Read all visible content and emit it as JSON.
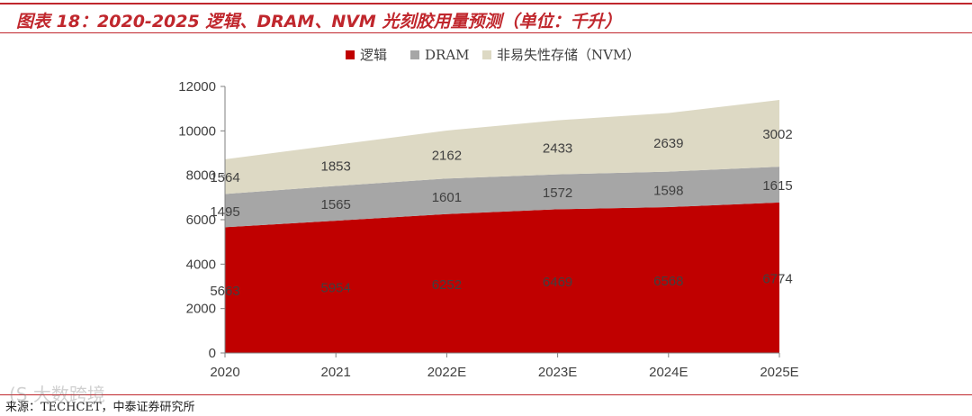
{
  "header": {
    "title": "图表 18：2020-2025 逻辑、DRAM、NVM 光刻胶用量预测（单位：千升）"
  },
  "footer": {
    "source": "来源：TECHCET，中泰证券研究所",
    "watermark": "(S 大数跨境"
  },
  "colors": {
    "accent": "#c0272d",
    "logic": "#c00000",
    "dram": "#a6a6a6",
    "nvm": "#ddd9c4"
  },
  "chart_data": {
    "type": "area",
    "stacked": true,
    "categories": [
      "2020",
      "2021",
      "2022E",
      "2023E",
      "2024E",
      "2025E"
    ],
    "series": [
      {
        "name": "逻辑",
        "values": [
          5663,
          5954,
          6252,
          6469,
          6568,
          6774
        ]
      },
      {
        "name": "DRAM",
        "values": [
          1495,
          1565,
          1601,
          1572,
          1598,
          1615
        ]
      },
      {
        "name": "非易失性存储（NVM）",
        "values": [
          1564,
          1853,
          2162,
          2433,
          2639,
          3002
        ]
      }
    ],
    "ylim": [
      0,
      12000
    ],
    "yticks": [
      "0",
      "2000",
      "4000",
      "6000",
      "8000",
      "10000",
      "12000"
    ],
    "legend_position": "top-center",
    "grid": false
  }
}
